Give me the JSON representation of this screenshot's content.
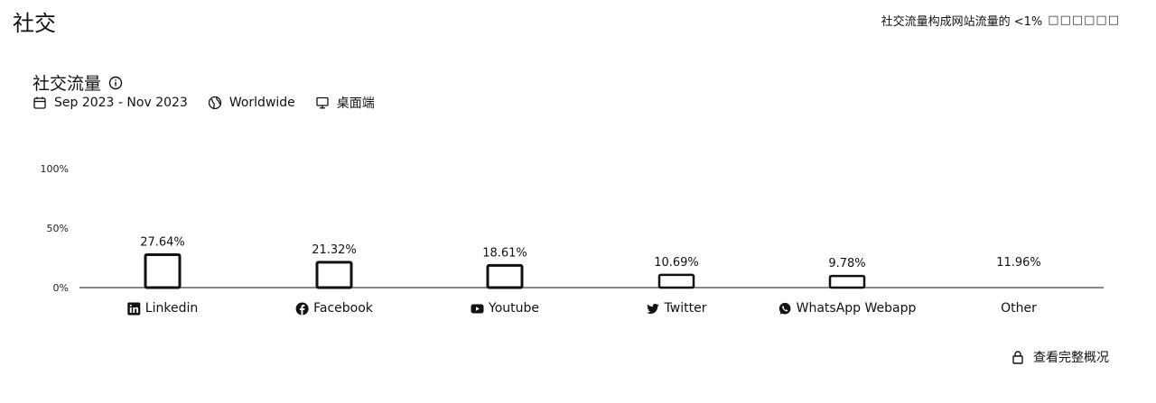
{
  "page": {
    "title": "社交"
  },
  "header": {
    "note": "社交流量构成网站流量的 <1%",
    "note_tail": "□□□□□□"
  },
  "card": {
    "title": "社交流量",
    "date_range": "Sep 2023 - Nov 2023",
    "region": "Worldwide",
    "device": "桌面端"
  },
  "footer": {
    "link_label": "查看完整概况"
  },
  "chart_data": {
    "type": "bar",
    "categories": [
      "Linkedin",
      "Facebook",
      "Youtube",
      "Twitter",
      "WhatsApp Webapp",
      "Other"
    ],
    "category_icons": [
      "linkedin-icon",
      "facebook-icon",
      "youtube-icon",
      "twitter-icon",
      "whatsapp-icon",
      ""
    ],
    "values": [
      27.64,
      21.32,
      18.61,
      10.69,
      9.78,
      11.96
    ],
    "value_labels": [
      "27.64%",
      "21.32%",
      "18.61%",
      "10.69%",
      "9.78%",
      "11.96%"
    ],
    "bar_drawn": [
      true,
      true,
      true,
      true,
      true,
      false
    ],
    "y_ticks": [
      0,
      50,
      100
    ],
    "y_tick_labels": [
      "0%",
      "50%",
      "100%"
    ],
    "ylim": [
      0,
      100
    ],
    "grid": false,
    "title": "社交流量",
    "xlabel": "",
    "ylabel": ""
  }
}
